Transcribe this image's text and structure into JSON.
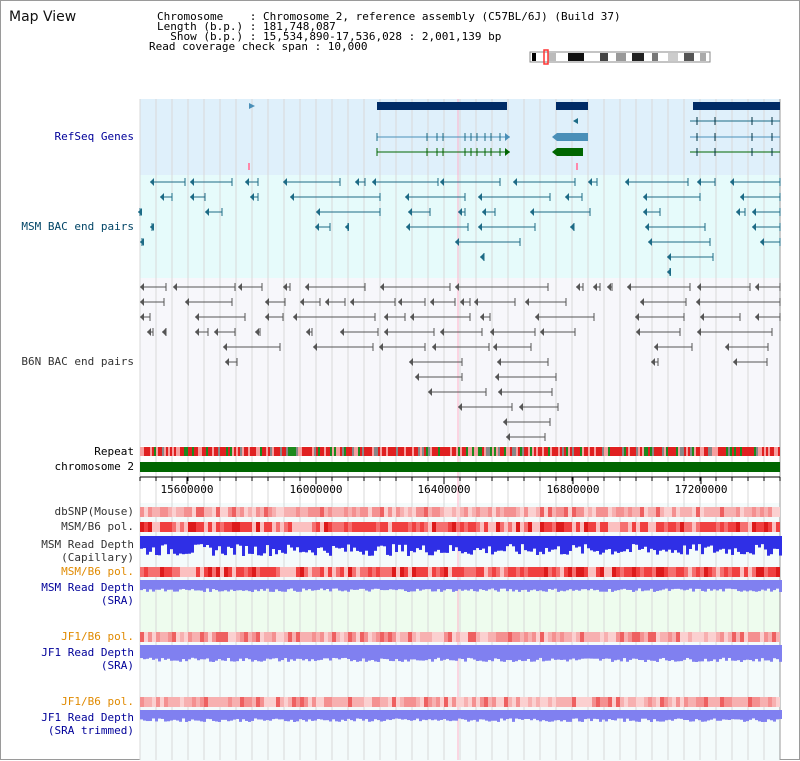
{
  "title": "Map View",
  "info": {
    "lines": [
      "Chromosome    : Chromosome 2, reference assembly (C57BL/6J) (Build 37)",
      "Length (b.p.) : 181,748,087",
      "  Show (b.p.) : 15,534,890-17,536,028 : 2,001,139 bp",
      "Read coverage check span : 10,000"
    ]
  },
  "tracks": {
    "refseq": "RefSeq Genes",
    "msm_bac": "MSM BAC end pairs",
    "b6n_bac": "B6N BAC end pairs",
    "repeat": "Repeat",
    "chromosome": "chromosome 2",
    "dbsnp": "dbSNP(Mouse)",
    "msm_pol": "MSM/B6 pol.",
    "msm_depth_cap": "MSM Read Depth\n(Capillary)",
    "msm_pol2": "MSM/B6 pol.",
    "msm_depth_sra": "MSM Read Depth\n(SRA)",
    "jf1_pol": "JF1/B6 pol.",
    "jf1_depth_sra": "JF1 Read Depth\n(SRA)",
    "jf1_pol2": "JF1/B6 pol.",
    "jf1_depth_trim": "JF1 Read Depth\n(SRA trimmed)"
  },
  "axis": {
    "ticks": [
      "15600000",
      "16000000",
      "16400000",
      "16800000",
      "17200000"
    ]
  },
  "colors": {
    "refseq_bg": "#dff0fb",
    "msm_bg": "#e6fbfb",
    "gene_dark": "#002b66",
    "gene_light": "#4a8fb8",
    "gene_green": "#006600",
    "msm_feature": "#1d6b86",
    "b6n_feature": "#555555",
    "chromosome": "#006600",
    "depth_blue": "#2f2fe6",
    "depth_light": "#8080f0",
    "pol_red": "#ff4040"
  }
}
